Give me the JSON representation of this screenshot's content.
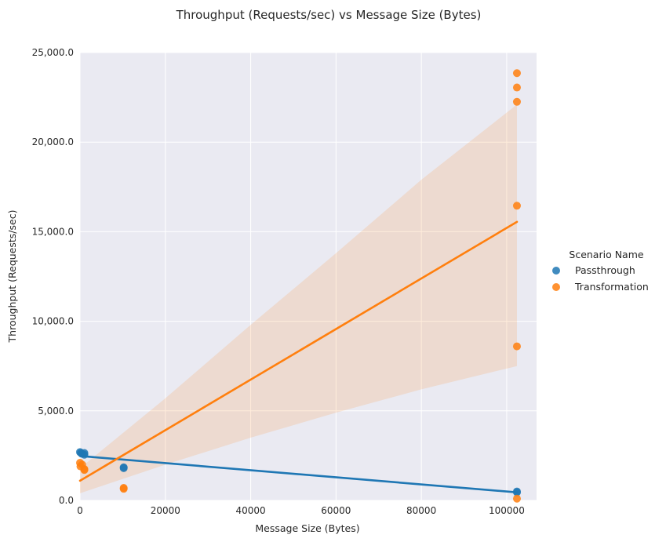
{
  "chart_data": {
    "type": "scatter",
    "title": "Throughput (Requests/sec) vs Message Size (Bytes)",
    "xlabel": "Message Size (Bytes)",
    "ylabel": "Throughput (Requests/sec)",
    "xlim": [
      0,
      107000
    ],
    "ylim": [
      0,
      25000
    ],
    "xticks": [
      0,
      20000,
      40000,
      60000,
      80000,
      100000
    ],
    "xtick_labels": [
      "0",
      "20000",
      "40000",
      "60000",
      "80000",
      "100000"
    ],
    "yticks": [
      0,
      5000,
      10000,
      15000,
      20000,
      25000
    ],
    "ytick_labels": [
      "0.0",
      "5,000.0",
      "10,000.0",
      "15,000.0",
      "20,000.0",
      "25,000.0"
    ],
    "grid": true,
    "legend": {
      "title": "Scenario Name",
      "placement": "right"
    },
    "series": [
      {
        "name": "Passthrough",
        "color": "#1f77b4",
        "points": [
          {
            "x": 0,
            "y": 2700
          },
          {
            "x": 200,
            "y": 2650
          },
          {
            "x": 500,
            "y": 2600
          },
          {
            "x": 1024,
            "y": 2650
          },
          {
            "x": 1024,
            "y": 2550
          },
          {
            "x": 10240,
            "y": 1850
          },
          {
            "x": 10240,
            "y": 1800
          },
          {
            "x": 102400,
            "y": 500
          },
          {
            "x": 102400,
            "y": 450
          }
        ],
        "fit": {
          "x": [
            0,
            102400
          ],
          "y": [
            2480,
            450
          ]
        }
      },
      {
        "name": "Transformation",
        "color": "#ff7f0e",
        "points": [
          {
            "x": 0,
            "y": 2100
          },
          {
            "x": 100,
            "y": 1900
          },
          {
            "x": 500,
            "y": 2000
          },
          {
            "x": 1024,
            "y": 1750
          },
          {
            "x": 1024,
            "y": 1700
          },
          {
            "x": 10240,
            "y": 700
          },
          {
            "x": 10240,
            "y": 650
          },
          {
            "x": 102400,
            "y": 23850
          },
          {
            "x": 102400,
            "y": 23050
          },
          {
            "x": 102400,
            "y": 22250
          },
          {
            "x": 102400,
            "y": 16450
          },
          {
            "x": 102400,
            "y": 8600
          },
          {
            "x": 102400,
            "y": 100
          }
        ],
        "fit": {
          "x": [
            0,
            102400
          ],
          "y": [
            1100,
            15550
          ]
        },
        "ci": {
          "x": [
            0,
            20000,
            40000,
            60000,
            80000,
            102400
          ],
          "lower": [
            400,
            2000,
            3500,
            4900,
            6200,
            7500
          ],
          "upper": [
            1800,
            5700,
            9800,
            13800,
            17900,
            22100
          ]
        }
      }
    ]
  }
}
